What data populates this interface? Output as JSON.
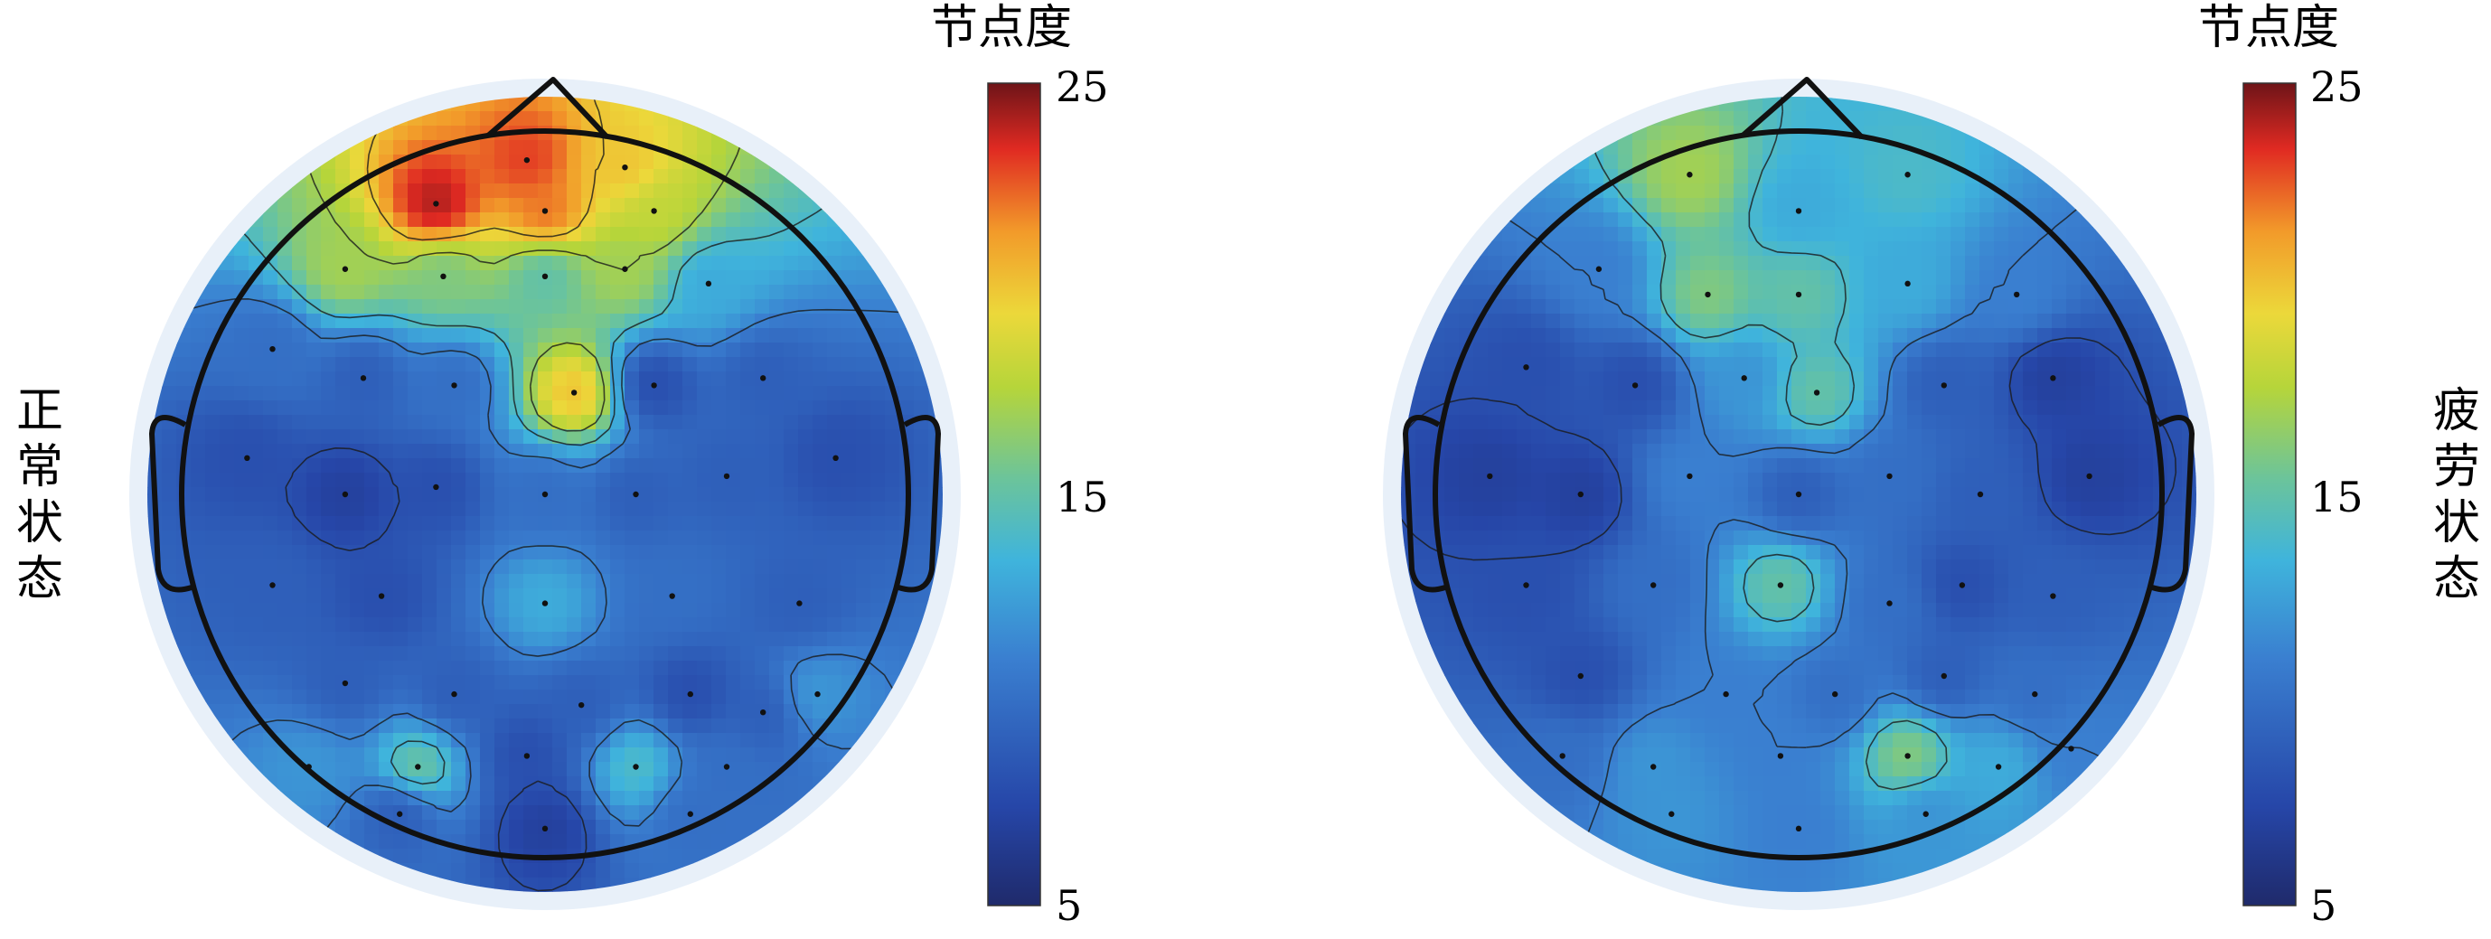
{
  "chart_data": [
    {
      "type": "heatmap",
      "subtype": "scalp-topography",
      "title": "",
      "row_label": "正常状态",
      "colorbar": {
        "title": "节点度",
        "ticks": [
          25,
          15,
          5
        ],
        "range": [
          5,
          25
        ],
        "colormap": "jet"
      },
      "electrodes": [
        [
          -0.05,
          0.92,
          23
        ],
        [
          0.22,
          0.9,
          20
        ],
        [
          -0.3,
          0.8,
          24
        ],
        [
          0.0,
          0.78,
          22
        ],
        [
          0.3,
          0.78,
          18
        ],
        [
          -0.55,
          0.62,
          17
        ],
        [
          -0.28,
          0.6,
          16
        ],
        [
          0.0,
          0.6,
          15
        ],
        [
          0.22,
          0.62,
          17
        ],
        [
          0.45,
          0.58,
          13
        ],
        [
          -0.75,
          0.4,
          10
        ],
        [
          -0.5,
          0.32,
          9
        ],
        [
          -0.25,
          0.3,
          10
        ],
        [
          0.08,
          0.28,
          20
        ],
        [
          0.3,
          0.3,
          8
        ],
        [
          0.6,
          0.32,
          9
        ],
        [
          -0.82,
          0.1,
          8
        ],
        [
          -0.55,
          0.0,
          7
        ],
        [
          -0.3,
          0.02,
          8
        ],
        [
          0.0,
          0.0,
          10
        ],
        [
          0.25,
          0.0,
          9
        ],
        [
          0.5,
          0.05,
          9
        ],
        [
          0.8,
          0.1,
          8
        ],
        [
          -0.75,
          -0.25,
          9
        ],
        [
          -0.45,
          -0.28,
          8
        ],
        [
          0.0,
          -0.3,
          13
        ],
        [
          0.35,
          -0.28,
          10
        ],
        [
          0.7,
          -0.3,
          9
        ],
        [
          -0.55,
          -0.52,
          9
        ],
        [
          -0.25,
          -0.55,
          9
        ],
        [
          0.1,
          -0.58,
          9
        ],
        [
          0.4,
          -0.55,
          8
        ],
        [
          0.6,
          -0.6,
          9
        ],
        [
          -0.35,
          -0.75,
          15
        ],
        [
          -0.05,
          -0.72,
          8
        ],
        [
          0.25,
          -0.75,
          14
        ],
        [
          0.5,
          -0.75,
          10
        ],
        [
          -0.65,
          -0.75,
          12
        ],
        [
          0.0,
          -0.92,
          7
        ],
        [
          -0.4,
          -0.88,
          9
        ],
        [
          0.4,
          -0.88,
          10
        ],
        [
          0.75,
          -0.55,
          12
        ]
      ]
    },
    {
      "type": "heatmap",
      "subtype": "scalp-topography",
      "title": "",
      "row_label": "疲劳状态",
      "colorbar": {
        "title": "节点度",
        "ticks": [
          25,
          15,
          5
        ],
        "range": [
          5,
          25
        ],
        "colormap": "jet"
      },
      "electrodes": [
        [
          -0.3,
          0.88,
          17
        ],
        [
          0.3,
          0.88,
          14
        ],
        [
          0.0,
          0.78,
          13
        ],
        [
          -0.55,
          0.62,
          11
        ],
        [
          -0.25,
          0.55,
          16
        ],
        [
          0.0,
          0.55,
          15
        ],
        [
          0.3,
          0.58,
          13
        ],
        [
          0.6,
          0.55,
          11
        ],
        [
          -0.75,
          0.35,
          8
        ],
        [
          -0.45,
          0.3,
          8
        ],
        [
          -0.15,
          0.32,
          12
        ],
        [
          0.05,
          0.28,
          15
        ],
        [
          0.4,
          0.3,
          9
        ],
        [
          0.7,
          0.32,
          7
        ],
        [
          -0.85,
          0.05,
          7
        ],
        [
          -0.6,
          0.0,
          7
        ],
        [
          -0.3,
          0.05,
          11
        ],
        [
          0.0,
          0.0,
          9
        ],
        [
          0.25,
          0.05,
          10
        ],
        [
          0.5,
          0.0,
          9
        ],
        [
          0.8,
          0.05,
          7
        ],
        [
          -0.75,
          -0.25,
          8
        ],
        [
          -0.4,
          -0.25,
          10
        ],
        [
          -0.05,
          -0.25,
          15
        ],
        [
          0.25,
          -0.3,
          10
        ],
        [
          0.45,
          -0.25,
          8
        ],
        [
          0.7,
          -0.28,
          9
        ],
        [
          -0.6,
          -0.5,
          8
        ],
        [
          -0.2,
          -0.55,
          11
        ],
        [
          0.1,
          -0.55,
          10
        ],
        [
          0.4,
          -0.5,
          9
        ],
        [
          0.65,
          -0.55,
          10
        ],
        [
          -0.4,
          -0.75,
          12
        ],
        [
          -0.05,
          -0.72,
          11
        ],
        [
          0.3,
          -0.72,
          16
        ],
        [
          0.55,
          -0.75,
          13
        ],
        [
          0.0,
          -0.92,
          11
        ],
        [
          -0.35,
          -0.88,
          12
        ],
        [
          0.35,
          -0.88,
          12
        ],
        [
          -0.65,
          -0.72,
          10
        ],
        [
          0.75,
          -0.7,
          11
        ]
      ]
    }
  ]
}
